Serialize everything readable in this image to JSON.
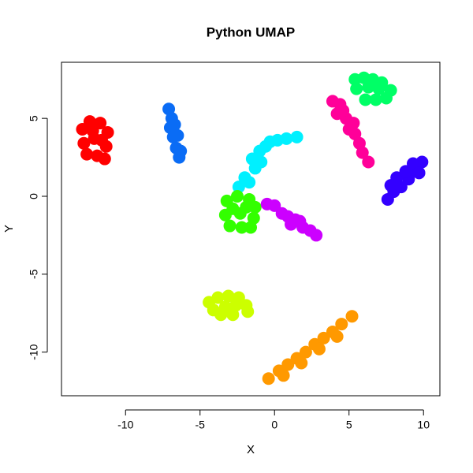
{
  "chart_data": {
    "type": "scatter",
    "title": "Python UMAP",
    "x_label": "X",
    "y_label": "Y",
    "xlim": [
      -14.3,
      11.1
    ],
    "ylim": [
      -12.8,
      8.6
    ],
    "xticks": [
      -10,
      -5,
      0,
      5,
      10
    ],
    "yticks": [
      -10,
      -5,
      0,
      5
    ],
    "series": [
      {
        "color": "#ff0000",
        "x": [
          -12.9,
          -12.4,
          -11.7,
          -11.2,
          -12.8,
          -12.1,
          -11.3,
          -12.6,
          -11.9,
          -11.4,
          -12.2,
          -11.6
        ],
        "y": [
          4.3,
          4.8,
          4.7,
          4.1,
          3.4,
          3.7,
          3.2,
          2.7,
          2.6,
          2.4,
          4.2,
          3.6
        ]
      },
      {
        "color": "#0a6cf5",
        "x": [
          -7.1,
          -6.9,
          -7.0,
          -6.7,
          -6.8,
          -6.5,
          -6.6,
          -6.4,
          -6.3
        ],
        "y": [
          5.6,
          5.0,
          4.4,
          4.6,
          3.8,
          3.9,
          3.1,
          2.5,
          2.9
        ]
      },
      {
        "color": "#00f0ff",
        "x": [
          -2.4,
          -2.0,
          -1.7,
          -1.3,
          -1.5,
          -1.0,
          -0.6,
          -0.3,
          0.2,
          0.8,
          1.5,
          -0.9
        ],
        "y": [
          0.6,
          1.2,
          0.9,
          1.8,
          2.4,
          2.9,
          3.2,
          3.5,
          3.6,
          3.7,
          3.8,
          2.2
        ]
      },
      {
        "color": "#33ff00",
        "x": [
          -3.2,
          -2.5,
          -1.7,
          -1.3,
          -3.3,
          -2.3,
          -1.4,
          -3.0,
          -2.2,
          -1.6,
          -2.8,
          -1.9
        ],
        "y": [
          -0.3,
          0.0,
          -0.2,
          -0.7,
          -1.2,
          -1.1,
          -1.4,
          -1.9,
          -2.0,
          -2.0,
          -0.8,
          -0.7
        ]
      },
      {
        "color": "#cc00ff",
        "x": [
          -0.5,
          0.0,
          0.5,
          0.9,
          1.4,
          1.9,
          2.4,
          2.8,
          1.1,
          1.7
        ],
        "y": [
          -0.5,
          -0.6,
          -1.1,
          -1.3,
          -1.5,
          -2.0,
          -2.2,
          -2.5,
          -1.8,
          -1.6
        ]
      },
      {
        "color": "#ccff00",
        "x": [
          -4.4,
          -3.8,
          -3.1,
          -2.4,
          -1.9,
          -4.1,
          -3.3,
          -2.6,
          -1.8,
          -3.6,
          -2.8
        ],
        "y": [
          -6.8,
          -6.5,
          -6.4,
          -6.5,
          -7.0,
          -7.3,
          -7.1,
          -7.0,
          -7.4,
          -7.6,
          -7.6
        ]
      },
      {
        "color": "#ff9900",
        "x": [
          -0.4,
          0.3,
          0.9,
          1.5,
          2.1,
          2.7,
          3.3,
          3.9,
          4.5,
          5.2,
          0.6,
          1.8,
          3.0,
          4.2
        ],
        "y": [
          -11.7,
          -11.2,
          -10.8,
          -10.4,
          -10.0,
          -9.5,
          -9.1,
          -8.7,
          -8.2,
          -7.7,
          -11.5,
          -10.7,
          -9.8,
          -9.0
        ]
      },
      {
        "color": "#ff0099",
        "x": [
          3.9,
          4.4,
          4.2,
          4.8,
          5.0,
          5.4,
          5.7,
          5.9,
          6.3,
          4.6,
          5.3
        ],
        "y": [
          6.1,
          5.9,
          5.3,
          5.0,
          4.3,
          4.0,
          3.4,
          2.8,
          2.2,
          5.5,
          4.7
        ]
      },
      {
        "color": "#00ff66",
        "x": [
          5.4,
          6.0,
          6.6,
          7.2,
          5.5,
          6.3,
          7.0,
          7.8,
          6.1,
          6.8,
          7.5
        ],
        "y": [
          7.5,
          7.6,
          7.5,
          7.3,
          6.9,
          7.0,
          6.9,
          6.8,
          6.2,
          6.2,
          6.3
        ]
      },
      {
        "color": "#3300ff",
        "x": [
          7.6,
          8.0,
          8.5,
          9.0,
          9.5,
          9.9,
          8.2,
          8.8,
          9.3,
          7.8,
          9.7
        ],
        "y": [
          -0.2,
          0.3,
          0.6,
          1.1,
          1.7,
          2.2,
          1.2,
          1.6,
          2.1,
          0.7,
          1.5
        ]
      }
    ]
  }
}
